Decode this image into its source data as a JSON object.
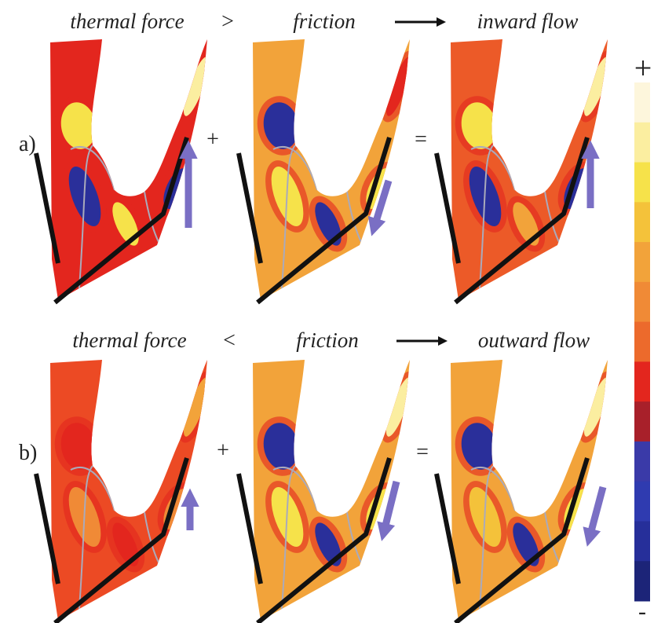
{
  "rows": [
    {
      "label": "a)",
      "left_term": "thermal force",
      "comparison": ">",
      "middle_term": "friction",
      "result": "inward flow",
      "plus": "+",
      "equals": "="
    },
    {
      "label": "b)",
      "left_term": "thermal force",
      "comparison": "<",
      "middle_term": "friction",
      "result": "outward flow",
      "plus": "+",
      "equals": "="
    }
  ],
  "colorbar": {
    "top_label": "+",
    "bottom_label": "-"
  }
}
